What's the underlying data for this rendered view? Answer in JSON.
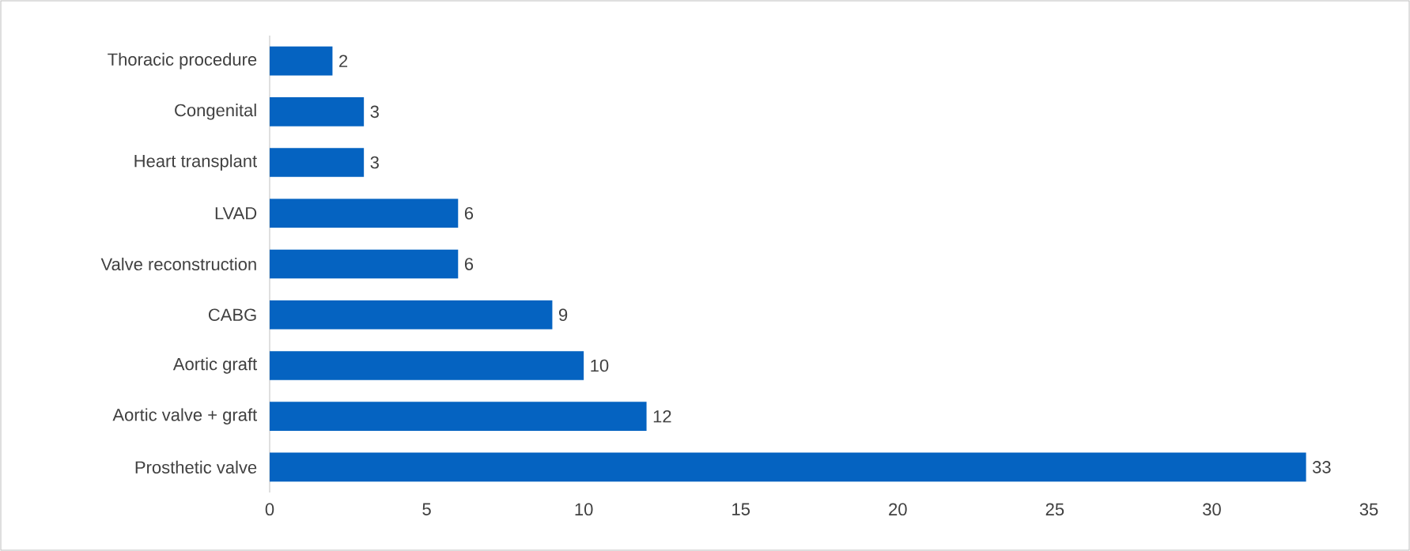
{
  "chart_data": {
    "type": "bar",
    "orientation": "horizontal",
    "categories": [
      "Thoracic procedure",
      "Congenital",
      "Heart transplant",
      "LVAD",
      "Valve reconstruction",
      "CABG",
      "Aortic graft",
      "Aortic valve + graft",
      "Prosthetic valve"
    ],
    "values": [
      2,
      3,
      3,
      6,
      6,
      9,
      10,
      12,
      33
    ],
    "color": "#0563c1",
    "xlim": [
      0,
      35
    ],
    "xticks": [
      0,
      5,
      10,
      15,
      20,
      25,
      30,
      35
    ],
    "data_labels": true
  }
}
